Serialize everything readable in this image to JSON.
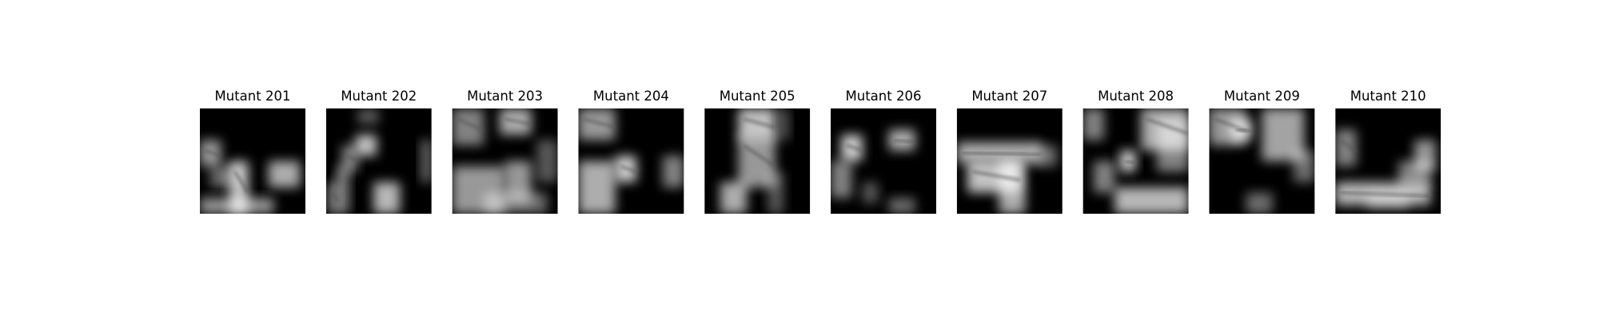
{
  "panels": [
    {
      "title": "Mutant 201"
    },
    {
      "title": "Mutant 202"
    },
    {
      "title": "Mutant 203"
    },
    {
      "title": "Mutant 204"
    },
    {
      "title": "Mutant 205"
    },
    {
      "title": "Mutant 206"
    },
    {
      "title": "Mutant 207"
    },
    {
      "title": "Mutant 208"
    },
    {
      "title": "Mutant 209"
    },
    {
      "title": "Mutant 210"
    }
  ]
}
